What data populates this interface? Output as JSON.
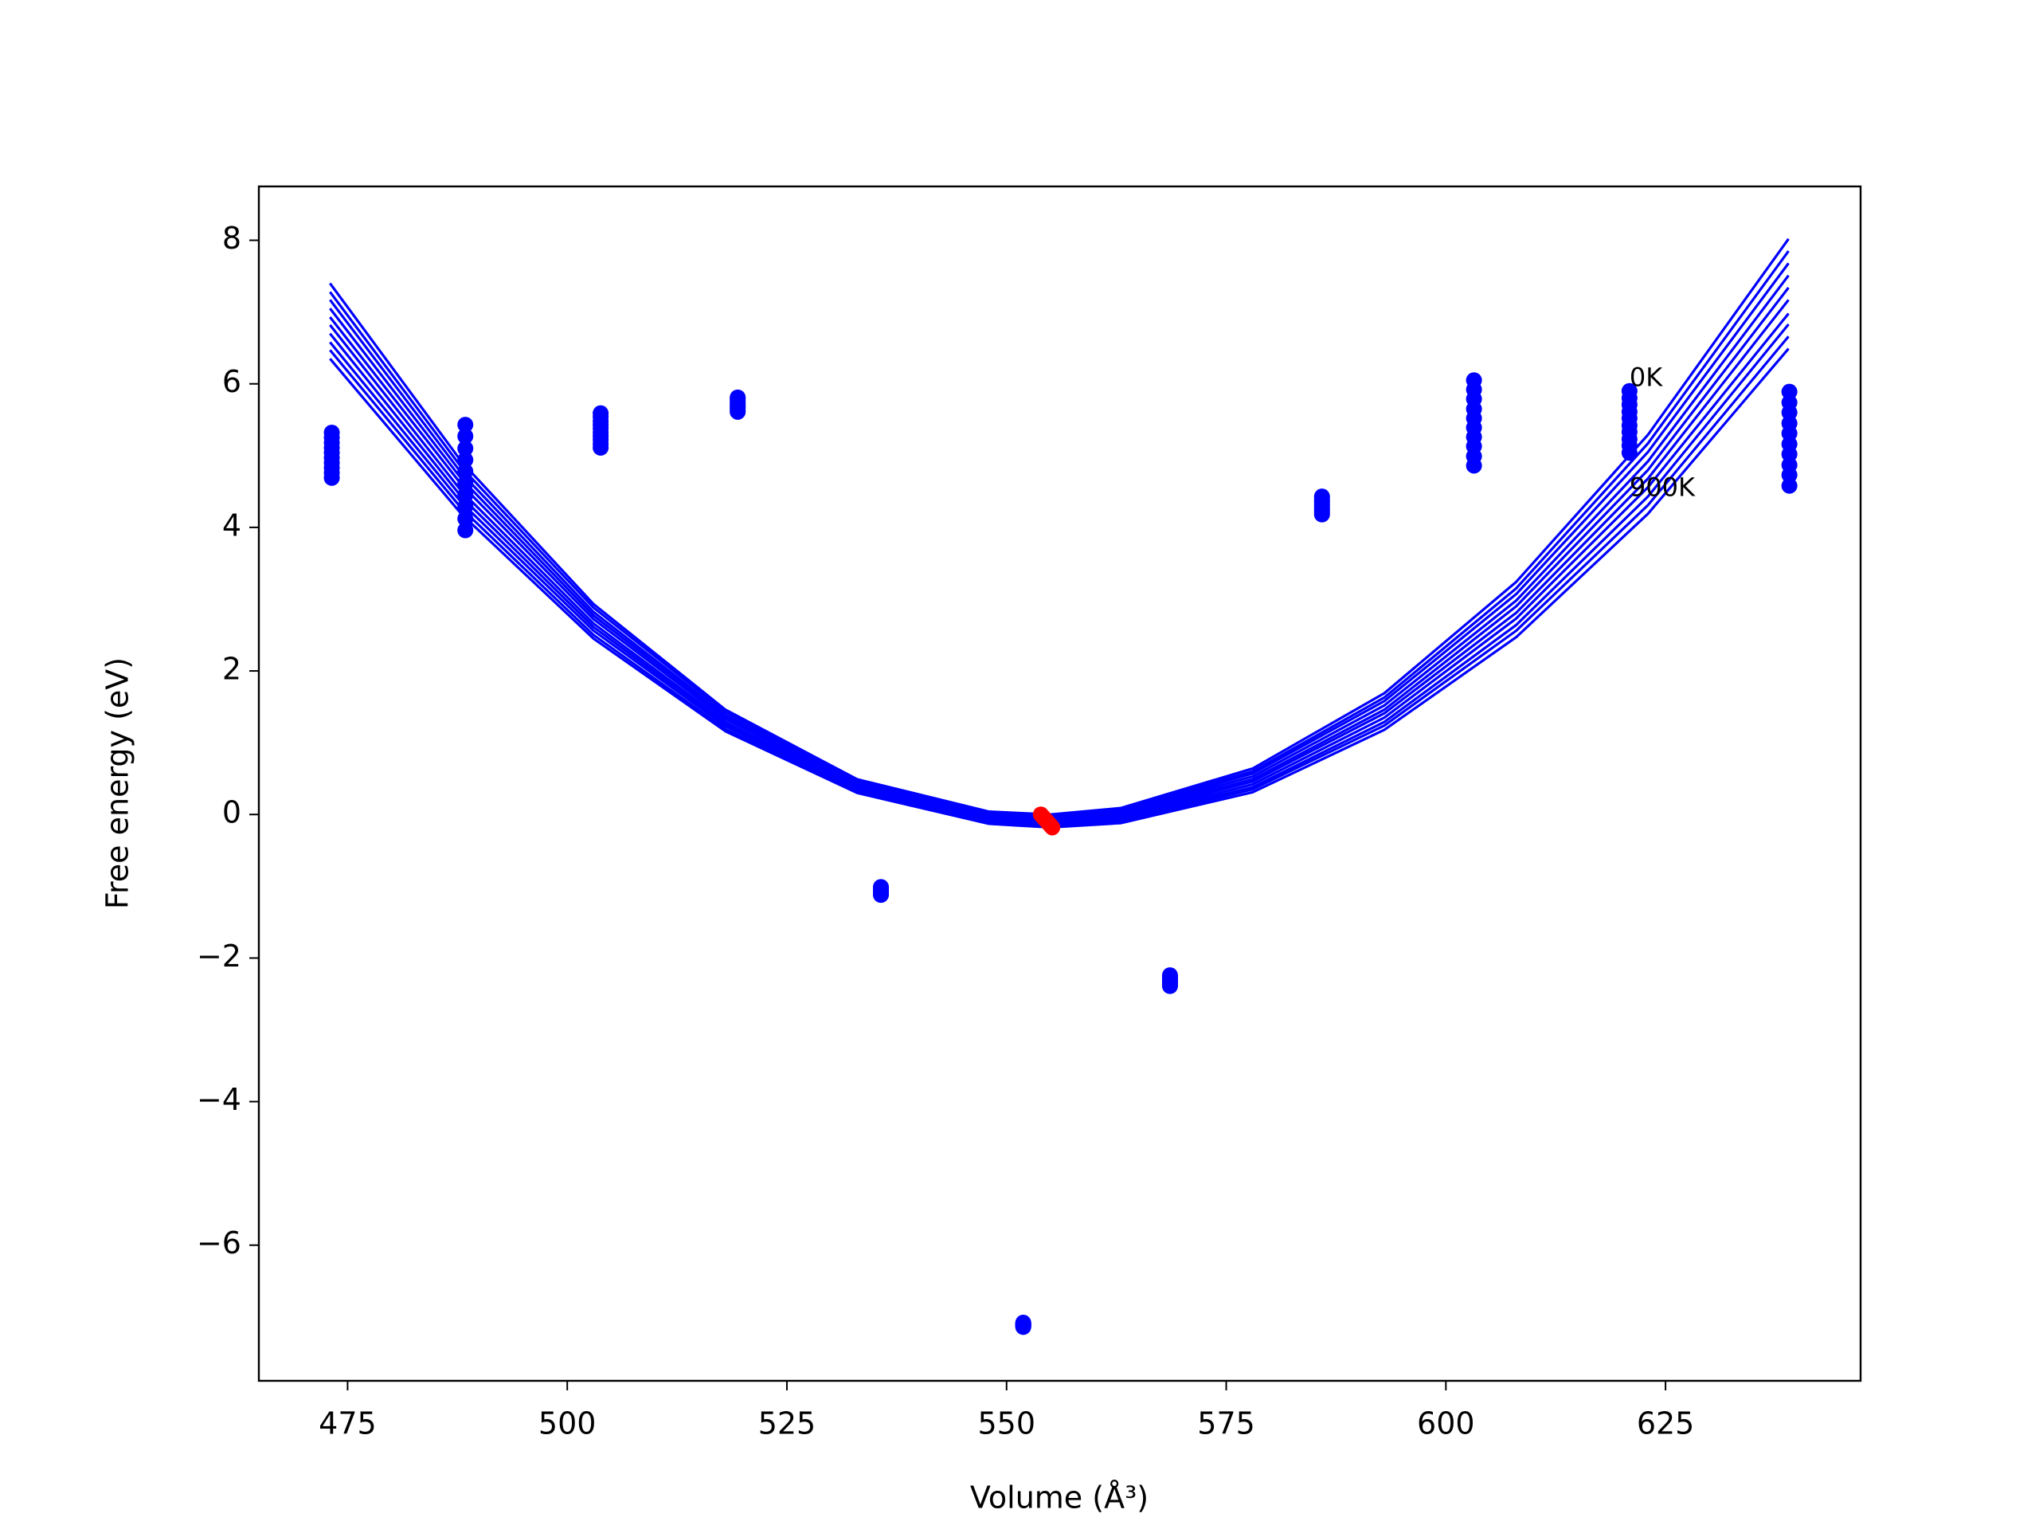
{
  "chart_data": {
    "type": "line",
    "xlabel": "Volume (Å³)",
    "ylabel": "Free energy (eV)",
    "xlim": [
      464.9,
      647.2
    ],
    "ylim": [
      -7.89,
      8.75
    ],
    "xticks": [
      475,
      500,
      525,
      550,
      575,
      600,
      625
    ],
    "yticks": [
      {
        "value": -6,
        "label": "−6"
      },
      {
        "value": -4,
        "label": "−4"
      },
      {
        "value": -2,
        "label": "−2"
      },
      0,
      2,
      4,
      6,
      8
    ],
    "x": [
      473,
      488,
      503,
      518,
      533,
      548,
      555,
      563,
      578,
      593,
      608,
      623,
      639
    ],
    "series": [
      {
        "type": "line",
        "color": "#0000ff",
        "values": [
          7.4,
          4.91,
          2.93,
          1.46,
          0.49,
          0.04,
          0,
          0.09,
          0.64,
          1.69,
          3.24,
          5.29,
          8.02
        ]
      },
      {
        "type": "line",
        "color": "#0000ff",
        "values": [
          7.28,
          4.83,
          2.88,
          1.43,
          0.47,
          0.02,
          -0.02,
          0.07,
          0.6,
          1.63,
          3.15,
          5.17,
          7.85
        ]
      },
      {
        "type": "line",
        "color": "#0000ff",
        "values": [
          7.17,
          4.75,
          2.82,
          1.39,
          0.45,
          0,
          -0.04,
          0.04,
          0.57,
          1.58,
          3.07,
          5.05,
          7.68
        ]
      },
      {
        "type": "line",
        "color": "#0000ff",
        "values": [
          7.05,
          4.67,
          2.77,
          1.36,
          0.43,
          -0.02,
          -0.06,
          0.02,
          0.53,
          1.52,
          2.98,
          4.92,
          7.51
        ]
      },
      {
        "type": "line",
        "color": "#0000ff",
        "values": [
          6.93,
          4.59,
          2.72,
          1.33,
          0.41,
          -0.04,
          -0.08,
          0,
          0.49,
          1.46,
          2.9,
          4.8,
          7.34
        ]
      },
      {
        "type": "line",
        "color": "#0000ff",
        "values": [
          6.82,
          4.5,
          2.66,
          1.29,
          0.38,
          -0.05,
          -0.1,
          -0.03,
          0.46,
          1.41,
          2.81,
          4.68,
          7.17
        ]
      },
      {
        "type": "line",
        "color": "#0000ff",
        "values": [
          6.7,
          4.42,
          2.61,
          1.26,
          0.36,
          -0.07,
          -0.12,
          -0.05,
          0.42,
          1.35,
          2.73,
          4.56,
          6.98
        ]
      },
      {
        "type": "line",
        "color": "#0000ff",
        "values": [
          6.58,
          4.34,
          2.56,
          1.23,
          0.34,
          -0.09,
          -0.14,
          -0.07,
          0.38,
          1.29,
          2.64,
          4.43,
          6.83
        ]
      },
      {
        "type": "line",
        "color": "#0000ff",
        "values": [
          6.47,
          4.26,
          2.5,
          1.19,
          0.32,
          -0.11,
          -0.16,
          -0.1,
          0.35,
          1.24,
          2.56,
          4.31,
          6.66
        ]
      },
      {
        "type": "line",
        "color": "#0000ff",
        "values": [
          6.35,
          4.18,
          2.45,
          1.16,
          0.3,
          -0.13,
          -0.18,
          -0.12,
          0.31,
          1.18,
          2.47,
          4.19,
          6.49
        ]
      },
      {
        "type": "scatter",
        "color": "#0000ff",
        "x": [
          473.2,
          473.2,
          473.2,
          473.2,
          473.2,
          473.2,
          473.2,
          473.2,
          473.2,
          473.2,
          488.4,
          488.4,
          488.4,
          488.4,
          488.4,
          488.4,
          488.4,
          488.4,
          488.4,
          488.4,
          503.8,
          503.8,
          503.8,
          503.8,
          503.8,
          503.8,
          503.8,
          503.8,
          503.8,
          503.8,
          519.4,
          519.4,
          519.4,
          519.4,
          519.4,
          519.4,
          519.4,
          519.4,
          519.4,
          519.4,
          535.7,
          535.7,
          535.7,
          535.7,
          535.7,
          535.7,
          535.7,
          535.7,
          535.7,
          535.7,
          551.9,
          551.9,
          551.9,
          551.9,
          551.9,
          551.9,
          551.9,
          551.9,
          551.9,
          551.9,
          568.6,
          568.6,
          568.6,
          568.6,
          568.6,
          568.6,
          568.6,
          568.6,
          568.6,
          568.6,
          585.9,
          585.9,
          585.9,
          585.9,
          585.9,
          585.9,
          585.9,
          585.9,
          585.9,
          585.9,
          603.2,
          603.2,
          603.2,
          603.2,
          603.2,
          603.2,
          603.2,
          603.2,
          603.2,
          603.2,
          620.9,
          620.9,
          620.9,
          620.9,
          620.9,
          620.9,
          620.9,
          620.9,
          620.9,
          620.9,
          639.1,
          639.1,
          639.1,
          639.1,
          639.1,
          639.1,
          639.1,
          639.1,
          639.1,
          639.1
        ],
        "values": [
          5.32,
          5.25,
          5.18,
          5.11,
          5.04,
          4.97,
          4.9,
          4.83,
          4.76,
          4.69,
          5.43,
          5.27,
          5.1,
          4.94,
          4.78,
          4.61,
          4.45,
          4.29,
          4.12,
          3.96,
          5.59,
          5.54,
          5.48,
          5.43,
          5.38,
          5.32,
          5.27,
          5.22,
          5.16,
          5.11,
          5.81,
          5.79,
          5.77,
          5.74,
          5.72,
          5.7,
          5.68,
          5.66,
          5.63,
          5.61,
          -1.01,
          -1.02,
          -1.03,
          -1.05,
          -1.06,
          -1.07,
          -1.08,
          -1.09,
          -1.11,
          -1.12,
          -7.08,
          -7.09,
          -7.09,
          -7.1,
          -7.11,
          -7.11,
          -7.12,
          -7.13,
          -7.13,
          -7.14,
          -2.24,
          -2.26,
          -2.27,
          -2.29,
          -2.31,
          -2.32,
          -2.34,
          -2.36,
          -2.37,
          -2.39,
          4.43,
          4.4,
          4.37,
          4.35,
          4.32,
          4.29,
          4.26,
          4.24,
          4.21,
          4.18,
          6.05,
          5.92,
          5.79,
          5.65,
          5.52,
          5.39,
          5.26,
          5.13,
          4.99,
          4.86,
          5.9,
          5.8,
          5.71,
          5.61,
          5.52,
          5.42,
          5.33,
          5.23,
          5.14,
          5.04,
          5.89,
          5.74,
          5.6,
          5.45,
          5.31,
          5.16,
          5.02,
          4.87,
          4.73,
          4.58
        ]
      },
      {
        "type": "scatter",
        "color": "#ff0000",
        "x": [
          553.9,
          554.04,
          554.19,
          554.33,
          554.48,
          554.62,
          554.77,
          554.91,
          555.06,
          555.2
        ],
        "values": [
          0,
          -0.02,
          -0.04,
          -0.06,
          -0.08,
          -0.1,
          -0.12,
          -0.14,
          -0.16,
          -0.18
        ]
      }
    ],
    "annotations": [
      {
        "text": "0K",
        "x": 620.9,
        "y": 6.07
      },
      {
        "text": "900K",
        "x": 620.9,
        "y": 4.54
      }
    ]
  }
}
